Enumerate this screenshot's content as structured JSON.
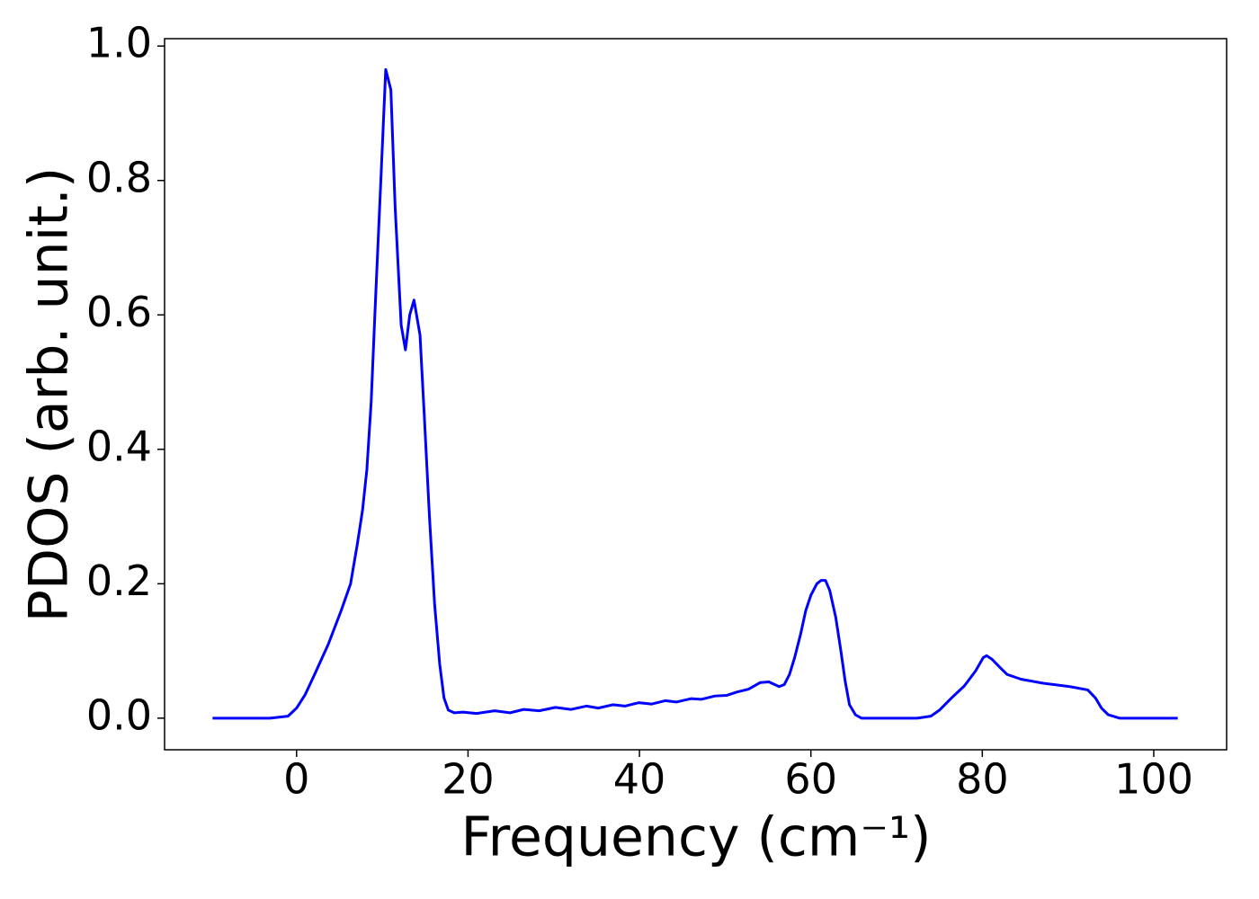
{
  "chart_data": {
    "type": "line",
    "xlabel": "Frequency (cm⁻¹)",
    "ylabel": "PDOS (arb. unit.)",
    "color": "#0000ff",
    "x": [
      -9.8,
      -3.1,
      -1.0,
      0,
      1.0,
      2.1,
      3.7,
      5.2,
      6.3,
      7.1,
      7.7,
      8.2,
      8.7,
      9.2,
      9.9,
      10.4,
      11.0,
      11.5,
      12.2,
      12.7,
      13.2,
      13.7,
      14.4,
      14.9,
      15.5,
      16.1,
      16.7,
      17.2,
      17.7,
      18.4,
      19.4,
      21.0,
      23.1,
      24.9,
      26.5,
      28.3,
      30.2,
      32.0,
      33.8,
      35.2,
      36.9,
      38.3,
      39.9,
      41.4,
      43.0,
      44.3,
      46.0,
      47.2,
      48.8,
      50.2,
      51.4,
      52.7,
      54.1,
      55.1,
      56.3,
      56.9,
      57.5,
      58.1,
      58.8,
      59.4,
      60.0,
      60.7,
      61.2,
      61.7,
      62.2,
      62.9,
      63.5,
      64.0,
      64.5,
      65.2,
      65.9,
      72.4,
      74.0,
      75.0,
      76.4,
      77.9,
      79.2,
      80.1,
      80.5,
      81.1,
      82.1,
      82.9,
      84.5,
      87.1,
      90.2,
      92.3,
      93.2,
      93.9,
      94.7,
      96.0,
      102.8
    ],
    "values": [
      0,
      0,
      0.003,
      0.015,
      0.035,
      0.065,
      0.11,
      0.16,
      0.2,
      0.26,
      0.31,
      0.37,
      0.47,
      0.62,
      0.82,
      0.965,
      0.935,
      0.76,
      0.585,
      0.548,
      0.6,
      0.622,
      0.57,
      0.45,
      0.3,
      0.17,
      0.08,
      0.03,
      0.012,
      0.008,
      0.009,
      0.007,
      0.011,
      0.008,
      0.013,
      0.011,
      0.016,
      0.013,
      0.018,
      0.015,
      0.02,
      0.018,
      0.023,
      0.021,
      0.026,
      0.024,
      0.029,
      0.028,
      0.033,
      0.034,
      0.039,
      0.043,
      0.053,
      0.054,
      0.047,
      0.05,
      0.065,
      0.09,
      0.125,
      0.16,
      0.183,
      0.2,
      0.205,
      0.205,
      0.19,
      0.15,
      0.1,
      0.055,
      0.02,
      0.005,
      0,
      0,
      0.003,
      0.012,
      0.03,
      0.048,
      0.07,
      0.09,
      0.093,
      0.088,
      0.075,
      0.065,
      0.058,
      0.052,
      0.047,
      0.042,
      0.03,
      0.015,
      0.005,
      0,
      0
    ],
    "xlim": [
      -15.4,
      108.5
    ],
    "ylim": [
      -0.047,
      1.011
    ],
    "xticks": [
      0,
      20,
      40,
      60,
      80,
      100
    ],
    "yticks": [
      {
        "value": 0,
        "label": "0.0"
      },
      {
        "value": 0.2,
        "label": "0.2"
      },
      {
        "value": 0.4,
        "label": "0.4"
      },
      {
        "value": 0.6,
        "label": "0.6"
      },
      {
        "value": 0.8,
        "label": "0.8"
      },
      {
        "value": 1.0,
        "label": "1.0"
      }
    ],
    "grid": false
  }
}
